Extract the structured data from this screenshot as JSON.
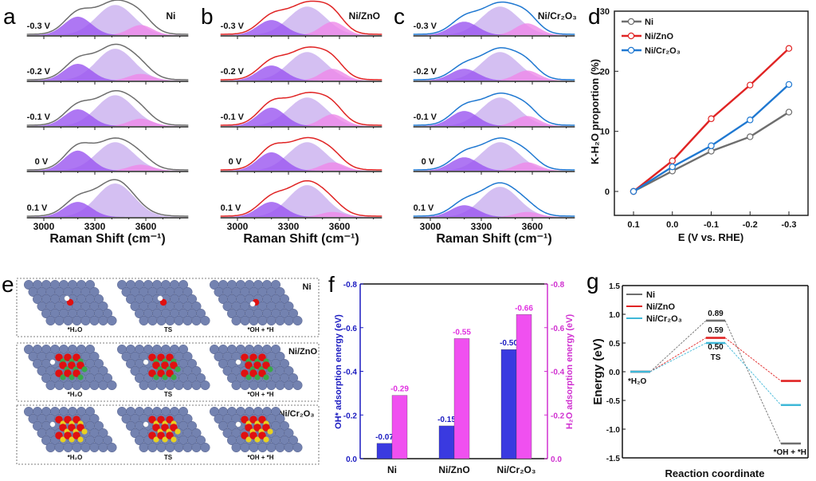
{
  "colors": {
    "ni": "#6e6e6e",
    "ni_zno": "#e02424",
    "ni_cr2o3": "#1f78d1",
    "ni_cr2o3_g": "#3fb8d8",
    "peak1": "#9a55f0",
    "peak2": "#cdb4f0",
    "peak3": "#ee88e8",
    "oh_bar": "#3a3ae0",
    "h2o_bar": "#f050f0",
    "slab": "#7382b0"
  },
  "panel_labels": {
    "a": "a",
    "b": "b",
    "c": "c",
    "d": "d",
    "e": "e",
    "f": "f",
    "g": "g"
  },
  "chart_data": [
    {
      "panel": "a",
      "type": "area",
      "sample": "Ni",
      "xlabel": "Raman Shift (cm⁻¹)",
      "xticks": [
        "3000",
        "3300",
        "3600"
      ],
      "xlim": [
        2900,
        3850
      ],
      "voltages": [
        "-0.3 V",
        "-0.2 V",
        "-0.1 V",
        "0 V",
        "0.1 V"
      ],
      "peak_centers": [
        3200,
        3420,
        3570
      ],
      "peak_intensities": [
        [
          0.55,
          0.9,
          0.3
        ],
        [
          0.5,
          0.95,
          0.2
        ],
        [
          0.5,
          0.92,
          0.22
        ],
        [
          0.6,
          0.85,
          0.18
        ],
        [
          0.45,
          1.0,
          0.0
        ]
      ]
    },
    {
      "panel": "b",
      "type": "area",
      "sample": "Ni/ZnO",
      "xlabel": "Raman Shift (cm⁻¹)",
      "xticks": [
        "3000",
        "3300",
        "3600"
      ],
      "xlim": [
        2900,
        3850
      ],
      "voltages": [
        "-0.3 V",
        "-0.2 V",
        "-0.1 V",
        "0 V",
        "0.1 V"
      ],
      "peak_centers": [
        3200,
        3410,
        3560
      ],
      "peak_intensities": [
        [
          0.45,
          0.85,
          0.4
        ],
        [
          0.45,
          0.85,
          0.35
        ],
        [
          0.55,
          0.85,
          0.35
        ],
        [
          0.55,
          0.85,
          0.25
        ],
        [
          0.45,
          0.95,
          0.15
        ]
      ]
    },
    {
      "panel": "c",
      "type": "area",
      "sample": "Ni/Cr₂O₃",
      "xlabel": "Raman Shift (cm⁻¹)",
      "xticks": [
        "3000",
        "3300",
        "3600"
      ],
      "xlim": [
        2900,
        3850
      ],
      "voltages": [
        "-0.3 V",
        "-0.2 V",
        "-0.1 V",
        "0 V",
        "0.1 V"
      ],
      "peak_centers": [
        3200,
        3410,
        3570
      ],
      "peak_intensities": [
        [
          0.4,
          0.85,
          0.35
        ],
        [
          0.35,
          0.85,
          0.3
        ],
        [
          0.45,
          0.85,
          0.3
        ],
        [
          0.4,
          0.85,
          0.25
        ],
        [
          0.35,
          0.9,
          0.15
        ]
      ]
    },
    {
      "panel": "d",
      "type": "line",
      "xlabel": "E (V vs. RHE)",
      "ylabel": "K-H₂O proportion (%)",
      "categories": [
        "0.1",
        "0.0",
        "-0.1",
        "-0.2",
        "-0.3"
      ],
      "ylim": [
        -4,
        30
      ],
      "yticks": [
        "0",
        "10",
        "20",
        "30"
      ],
      "legend": "top-left",
      "series": [
        {
          "name": "Ni",
          "values": [
            0,
            3.4,
            6.7,
            9.1,
            13.2
          ]
        },
        {
          "name": "Ni/ZnO",
          "values": [
            0,
            5.1,
            12.1,
            17.7,
            23.8
          ]
        },
        {
          "name": "Ni/Cr₂O₃",
          "values": [
            0,
            4.1,
            7.6,
            11.9,
            17.8
          ]
        }
      ]
    },
    {
      "panel": "f",
      "type": "bar",
      "categories": [
        "Ni",
        "Ni/ZnO",
        "Ni/Cr₂O₃"
      ],
      "ylabel_left": "OH* adsorption energy (eV)",
      "ylabel_right": "H₂O adsorption energy (eV)",
      "ylim": [
        0,
        -0.8
      ],
      "yticks": [
        "0.0",
        "-0.2",
        "-0.4",
        "-0.6",
        "-0.8"
      ],
      "series": [
        {
          "values": [
            -0.07,
            -0.15,
            -0.5
          ],
          "labels": [
            "-0.07",
            "-0.15",
            "-0.50"
          ]
        },
        {
          "values": [
            -0.29,
            -0.55,
            -0.66
          ],
          "labels": [
            "-0.29",
            "-0.55",
            "-0.66"
          ]
        }
      ]
    },
    {
      "panel": "g",
      "type": "line",
      "xlabel": "Reaction coordinate",
      "ylabel": "Energy (eV)",
      "ylim": [
        -1.5,
        1.5
      ],
      "yticks": [
        "1.5",
        "1.0",
        "0.5",
        "0.0",
        "-0.5",
        "-1.0",
        "-1.5"
      ],
      "legend": "top-left",
      "states": [
        "*H₂O",
        "TS",
        "*OH + *H"
      ],
      "series": [
        {
          "name": "Ni",
          "values": [
            0,
            0.89,
            -1.25
          ]
        },
        {
          "name": "Ni/ZnO",
          "values": [
            0,
            0.59,
            -0.16
          ]
        },
        {
          "name": "Ni/Cr₂O₃",
          "values": [
            0,
            0.5,
            -0.58
          ]
        }
      ],
      "annotations": [
        "0.89",
        "0.59",
        "0.50",
        "TS"
      ]
    }
  ],
  "panel_e": {
    "rows": [
      "Ni",
      "Ni/ZnO",
      "Ni/Cr₂O₃"
    ],
    "states": [
      "*H₂O",
      "TS",
      "*OH + *H"
    ]
  }
}
